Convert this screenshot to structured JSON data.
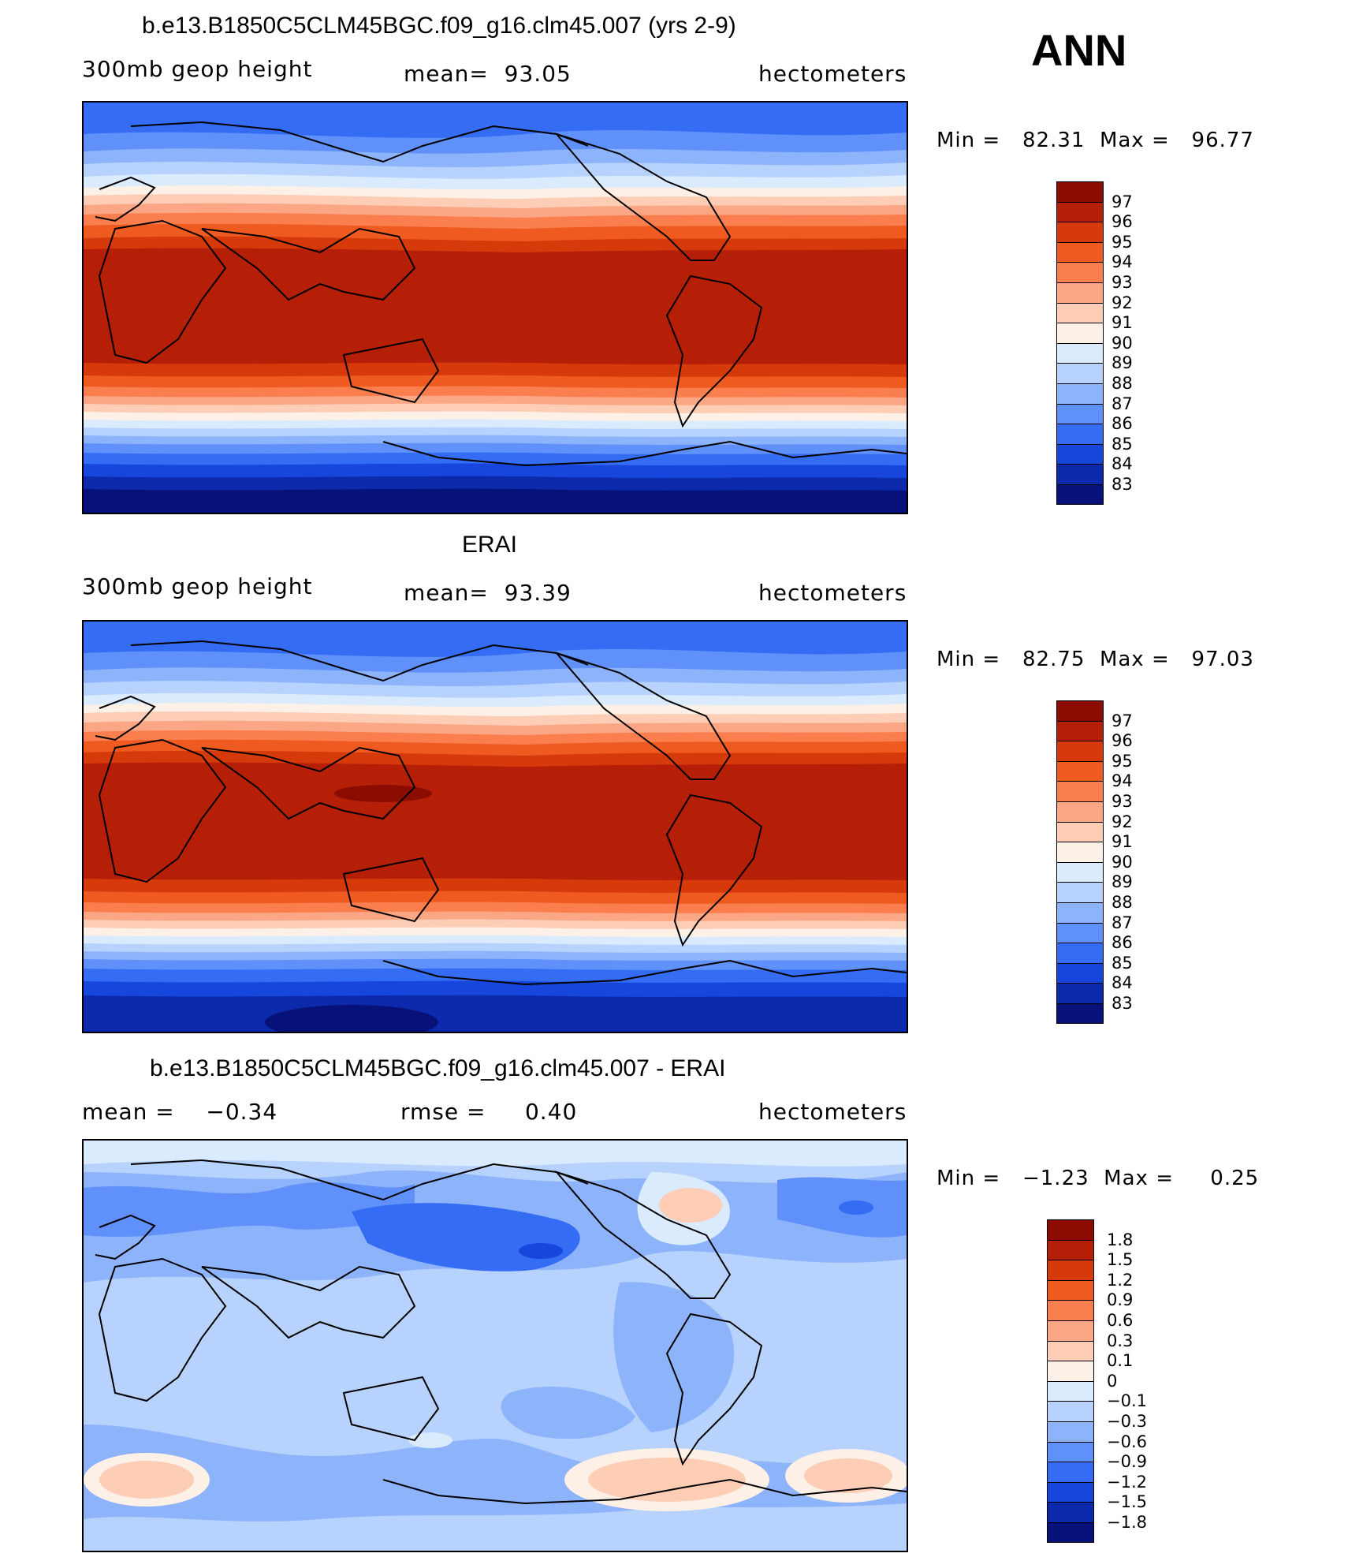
{
  "season": "ANN",
  "panels": [
    {
      "title": "b.e13.B1850C5CLM45BGC.f09_g16.clm45.007 (yrs 2-9)",
      "left_label": "300mb geop height",
      "center_label": "mean=  93.05",
      "right_label": "hectometers",
      "minmax": "Min =   82.31  Max =   96.77",
      "levels": [
        "97",
        "96",
        "95",
        "94",
        "93",
        "92",
        "91",
        "90",
        "89",
        "88",
        "87",
        "86",
        "85",
        "84",
        "83"
      ],
      "colors": [
        "#8b0c00",
        "#b51f08",
        "#d63a0b",
        "#ee5a20",
        "#fb7f4e",
        "#fba786",
        "#fdcdb6",
        "#fdf0e6",
        "#d9ebfc",
        "#b7d2fc",
        "#8db3fb",
        "#6091fa",
        "#346df4",
        "#1746dd",
        "#0d2aac",
        "#06127a"
      ]
    },
    {
      "title": "ERAI",
      "left_label": "300mb geop height",
      "center_label": "mean=  93.39",
      "right_label": "hectometers",
      "minmax": "Min =   82.75  Max =   97.03",
      "levels": [
        "97",
        "96",
        "95",
        "94",
        "93",
        "92",
        "91",
        "90",
        "89",
        "88",
        "87",
        "86",
        "85",
        "84",
        "83"
      ],
      "colors": [
        "#8b0c00",
        "#b51f08",
        "#d63a0b",
        "#ee5a20",
        "#fb7f4e",
        "#fba786",
        "#fdcdb6",
        "#fdf0e6",
        "#d9ebfc",
        "#b7d2fc",
        "#8db3fb",
        "#6091fa",
        "#346df4",
        "#1746dd",
        "#0d2aac",
        "#06127a"
      ]
    },
    {
      "title": "b.e13.B1850C5CLM45BGC.f09_g16.clm45.007 - ERAI",
      "left_label": "mean =    −0.34",
      "center_label": "rmse =     0.40",
      "right_label": "hectometers",
      "minmax": "Min =   −1.23  Max =     0.25",
      "levels": [
        "1.8",
        "1.5",
        "1.2",
        "0.9",
        "0.6",
        "0.3",
        "0.1",
        "0",
        "−0.1",
        "−0.3",
        "−0.6",
        "−0.9",
        "−1.2",
        "−1.5",
        "−1.8"
      ],
      "colors": [
        "#8b0c00",
        "#b51f08",
        "#d63a0b",
        "#ee5a20",
        "#fb7f4e",
        "#fba786",
        "#fdcdb6",
        "#fdf0e6",
        "#d9ebfc",
        "#b7d2fc",
        "#8db3fb",
        "#6091fa",
        "#346df4",
        "#1746dd",
        "#0d2aac",
        "#06127a"
      ]
    }
  ]
}
